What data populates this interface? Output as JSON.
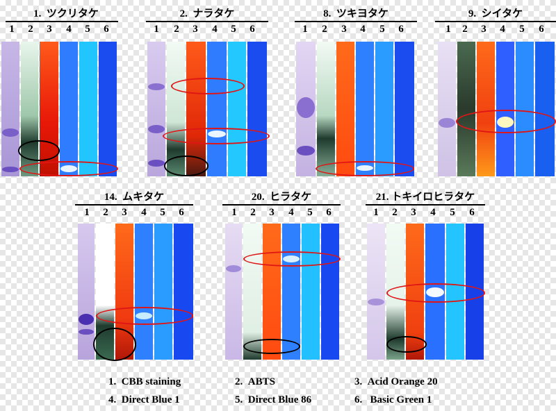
{
  "panels": [
    {
      "id": "p1",
      "title": "1.  ツクリタケ",
      "lanes": [
        "1",
        "2",
        "3",
        "4",
        "5",
        "6"
      ]
    },
    {
      "id": "p2",
      "title": "2.  ナラタケ",
      "lanes": [
        "1",
        "2",
        "3",
        "4",
        "5",
        "6"
      ]
    },
    {
      "id": "p8",
      "title": "8.  ツキヨタケ",
      "lanes": [
        "1",
        "2",
        "3",
        "4",
        "5",
        "6"
      ]
    },
    {
      "id": "p9",
      "title": "9.  シイタケ",
      "lanes": [
        "1",
        "2",
        "3",
        "4",
        "5",
        "6"
      ]
    },
    {
      "id": "p14",
      "title": "14.  ムキタケ",
      "lanes": [
        "1",
        "2",
        "3",
        "4",
        "5",
        "6"
      ]
    },
    {
      "id": "p20",
      "title": "20.  ヒラタケ",
      "lanes": [
        "1",
        "2",
        "3",
        "4",
        "5",
        "6"
      ]
    },
    {
      "id": "p21",
      "title": "21. トキイロヒラタケ",
      "lanes": [
        "1",
        "2",
        "3",
        "4",
        "5",
        "6"
      ]
    }
  ],
  "legend": [
    "1.  CBB staining",
    "2.  ABTS",
    "3.  Acid Orange 20",
    "4.  Direct Blue 1",
    "5.  Direct Blue 86",
    "6.   Basic Green 1"
  ],
  "colors": {
    "cbb": "#b9a6dc",
    "abts": "#d6eedd",
    "orange": "#ff4a1a",
    "blue1": "#2f80ff",
    "blue86": "#23c8ff",
    "green1": "#1848f0",
    "ring_red": "#e01616",
    "ring_black": "#000000"
  }
}
